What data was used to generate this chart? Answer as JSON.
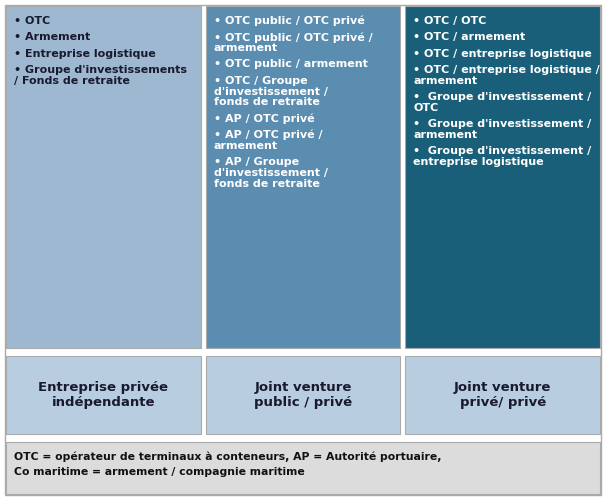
{
  "col1_header": "Entreprise privée\nindépendante",
  "col2_header": "Joint venture\npublic / privé",
  "col3_header": "Joint venture\nprivé/ privé",
  "col1_items": [
    "• OTC",
    "• Armement",
    "• Entreprise logistique",
    "• Groupe d'investissements\n/ Fonds de retraite"
  ],
  "col2_items": [
    "• OTC public / OTC privé",
    "• OTC public / OTC privé /\narmement",
    "• OTC public / armement",
    "• OTC / Groupe\nd'investissement /\nfonds de retraite",
    "• AP / OTC privé",
    "• AP / OTC privé /\narmement",
    "• AP / Groupe\nd'investissement /\nfonds de retraite"
  ],
  "col3_items": [
    "• OTC / OTC",
    "• OTC / armement",
    "• OTC / entreprise logistique",
    "• OTC / entreprise logistique /\narmement",
    "•  Groupe d'investissement /\nOTC",
    "•  Groupe d'investissement /\narmement",
    "•  Groupe d'investissement /\nentreprise logistique"
  ],
  "footer": "OTC = opérateur de terminaux à conteneurs, AP = Autorité portuaire,\nCo maritime = armement / compagnie maritime",
  "header_bg": "#b8cde0",
  "col1_bg": "#9db8d0",
  "col2_bg": "#5b8db0",
  "col3_bg": "#1a5f7a",
  "footer_bg": "#dcdcdc",
  "header_text_color": "#1a1a2e",
  "col1_text_color": "#1a1a2e",
  "col2_text_color": "#ffffff",
  "col3_text_color": "#ffffff",
  "footer_text_color": "#111111",
  "page_bg": "#ffffff"
}
